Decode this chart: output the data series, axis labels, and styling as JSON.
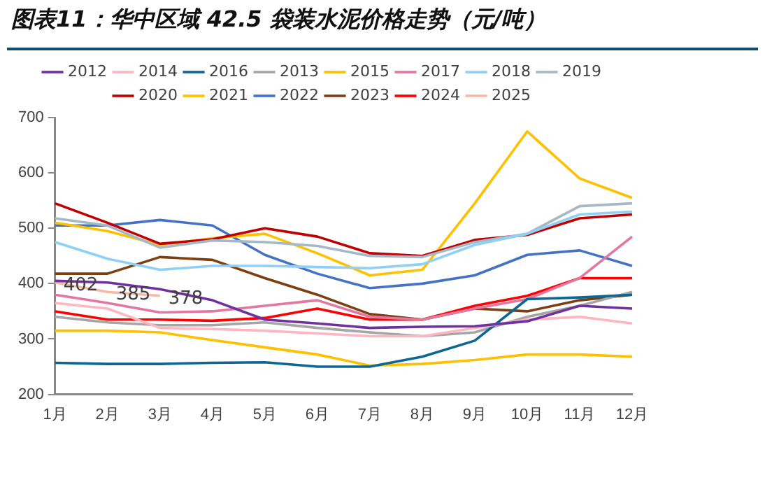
{
  "chart_data": {
    "type": "line",
    "title": "图表11：华中区域 42.5 袋装水泥价格走势（元/吨）",
    "categories": [
      "1月",
      "2月",
      "3月",
      "4月",
      "5月",
      "6月",
      "7月",
      "8月",
      "9月",
      "10月",
      "11月",
      "12月"
    ],
    "ylim": [
      200,
      700
    ],
    "yticks": [
      200,
      300,
      400,
      500,
      600,
      700
    ],
    "grid": false,
    "legend": "top",
    "marker": "none",
    "line_style": "solid",
    "series": [
      {
        "name": "2012",
        "color": "#7030a0",
        "values": [
          405,
          402,
          390,
          370,
          335,
          328,
          320,
          322,
          323,
          332,
          360,
          355
        ]
      },
      {
        "name": "2014",
        "color": "#ffb6c1",
        "values": [
          365,
          355,
          320,
          318,
          315,
          310,
          305,
          305,
          320,
          335,
          340,
          328
        ]
      },
      {
        "name": "2016",
        "color": "#0e6693",
        "values": [
          257,
          255,
          255,
          257,
          258,
          250,
          250,
          268,
          297,
          372,
          375,
          380
        ]
      },
      {
        "name": "2013",
        "color": "#a6a6a6",
        "values": [
          340,
          330,
          325,
          325,
          330,
          320,
          312,
          305,
          312,
          340,
          360,
          385
        ]
      },
      {
        "name": "2015",
        "color": "#ffc000",
        "values": [
          315,
          315,
          312,
          298,
          285,
          272,
          252,
          255,
          262,
          272,
          272,
          268
        ]
      },
      {
        "name": "2017",
        "color": "#e377a0",
        "values": [
          380,
          365,
          348,
          350,
          360,
          370,
          340,
          335,
          355,
          372,
          410,
          485
        ]
      },
      {
        "name": "2018",
        "color": "#8fd0f7",
        "values": [
          475,
          445,
          425,
          432,
          432,
          430,
          428,
          435,
          470,
          490,
          525,
          530
        ]
      },
      {
        "name": "2019",
        "color": "#a5b8c8",
        "values": [
          518,
          505,
          465,
          478,
          475,
          468,
          450,
          448,
          475,
          490,
          540,
          545
        ]
      },
      {
        "name": "2020",
        "color": "#c00000",
        "values": [
          545,
          510,
          472,
          480,
          500,
          485,
          455,
          450,
          479,
          488,
          518,
          525
        ]
      },
      {
        "name": "2021",
        "color": "#ffc000",
        "values": [
          510,
          495,
          470,
          482,
          490,
          455,
          415,
          425,
          545,
          675,
          590,
          555
        ]
      },
      {
        "name": "2022",
        "color": "#4472c4",
        "values": [
          505,
          505,
          515,
          505,
          452,
          418,
          392,
          400,
          415,
          452,
          460,
          432
        ]
      },
      {
        "name": "2023",
        "color": "#7b3f12",
        "values": [
          418,
          418,
          448,
          443,
          410,
          380,
          345,
          335,
          355,
          350,
          370,
          380
        ]
      },
      {
        "name": "2024",
        "color": "#ff0000",
        "values": [
          350,
          335,
          335,
          333,
          338,
          355,
          335,
          335,
          360,
          378,
          410,
          410
        ]
      },
      {
        "name": "2025",
        "color": "#f8b9a5",
        "values": [
          402,
          385,
          378,
          null,
          null,
          null,
          null,
          null,
          null,
          null,
          null,
          null
        ],
        "value_labels": [
          "402",
          "385",
          "378",
          null,
          null,
          null,
          null,
          null,
          null,
          null,
          null,
          null
        ]
      }
    ]
  }
}
